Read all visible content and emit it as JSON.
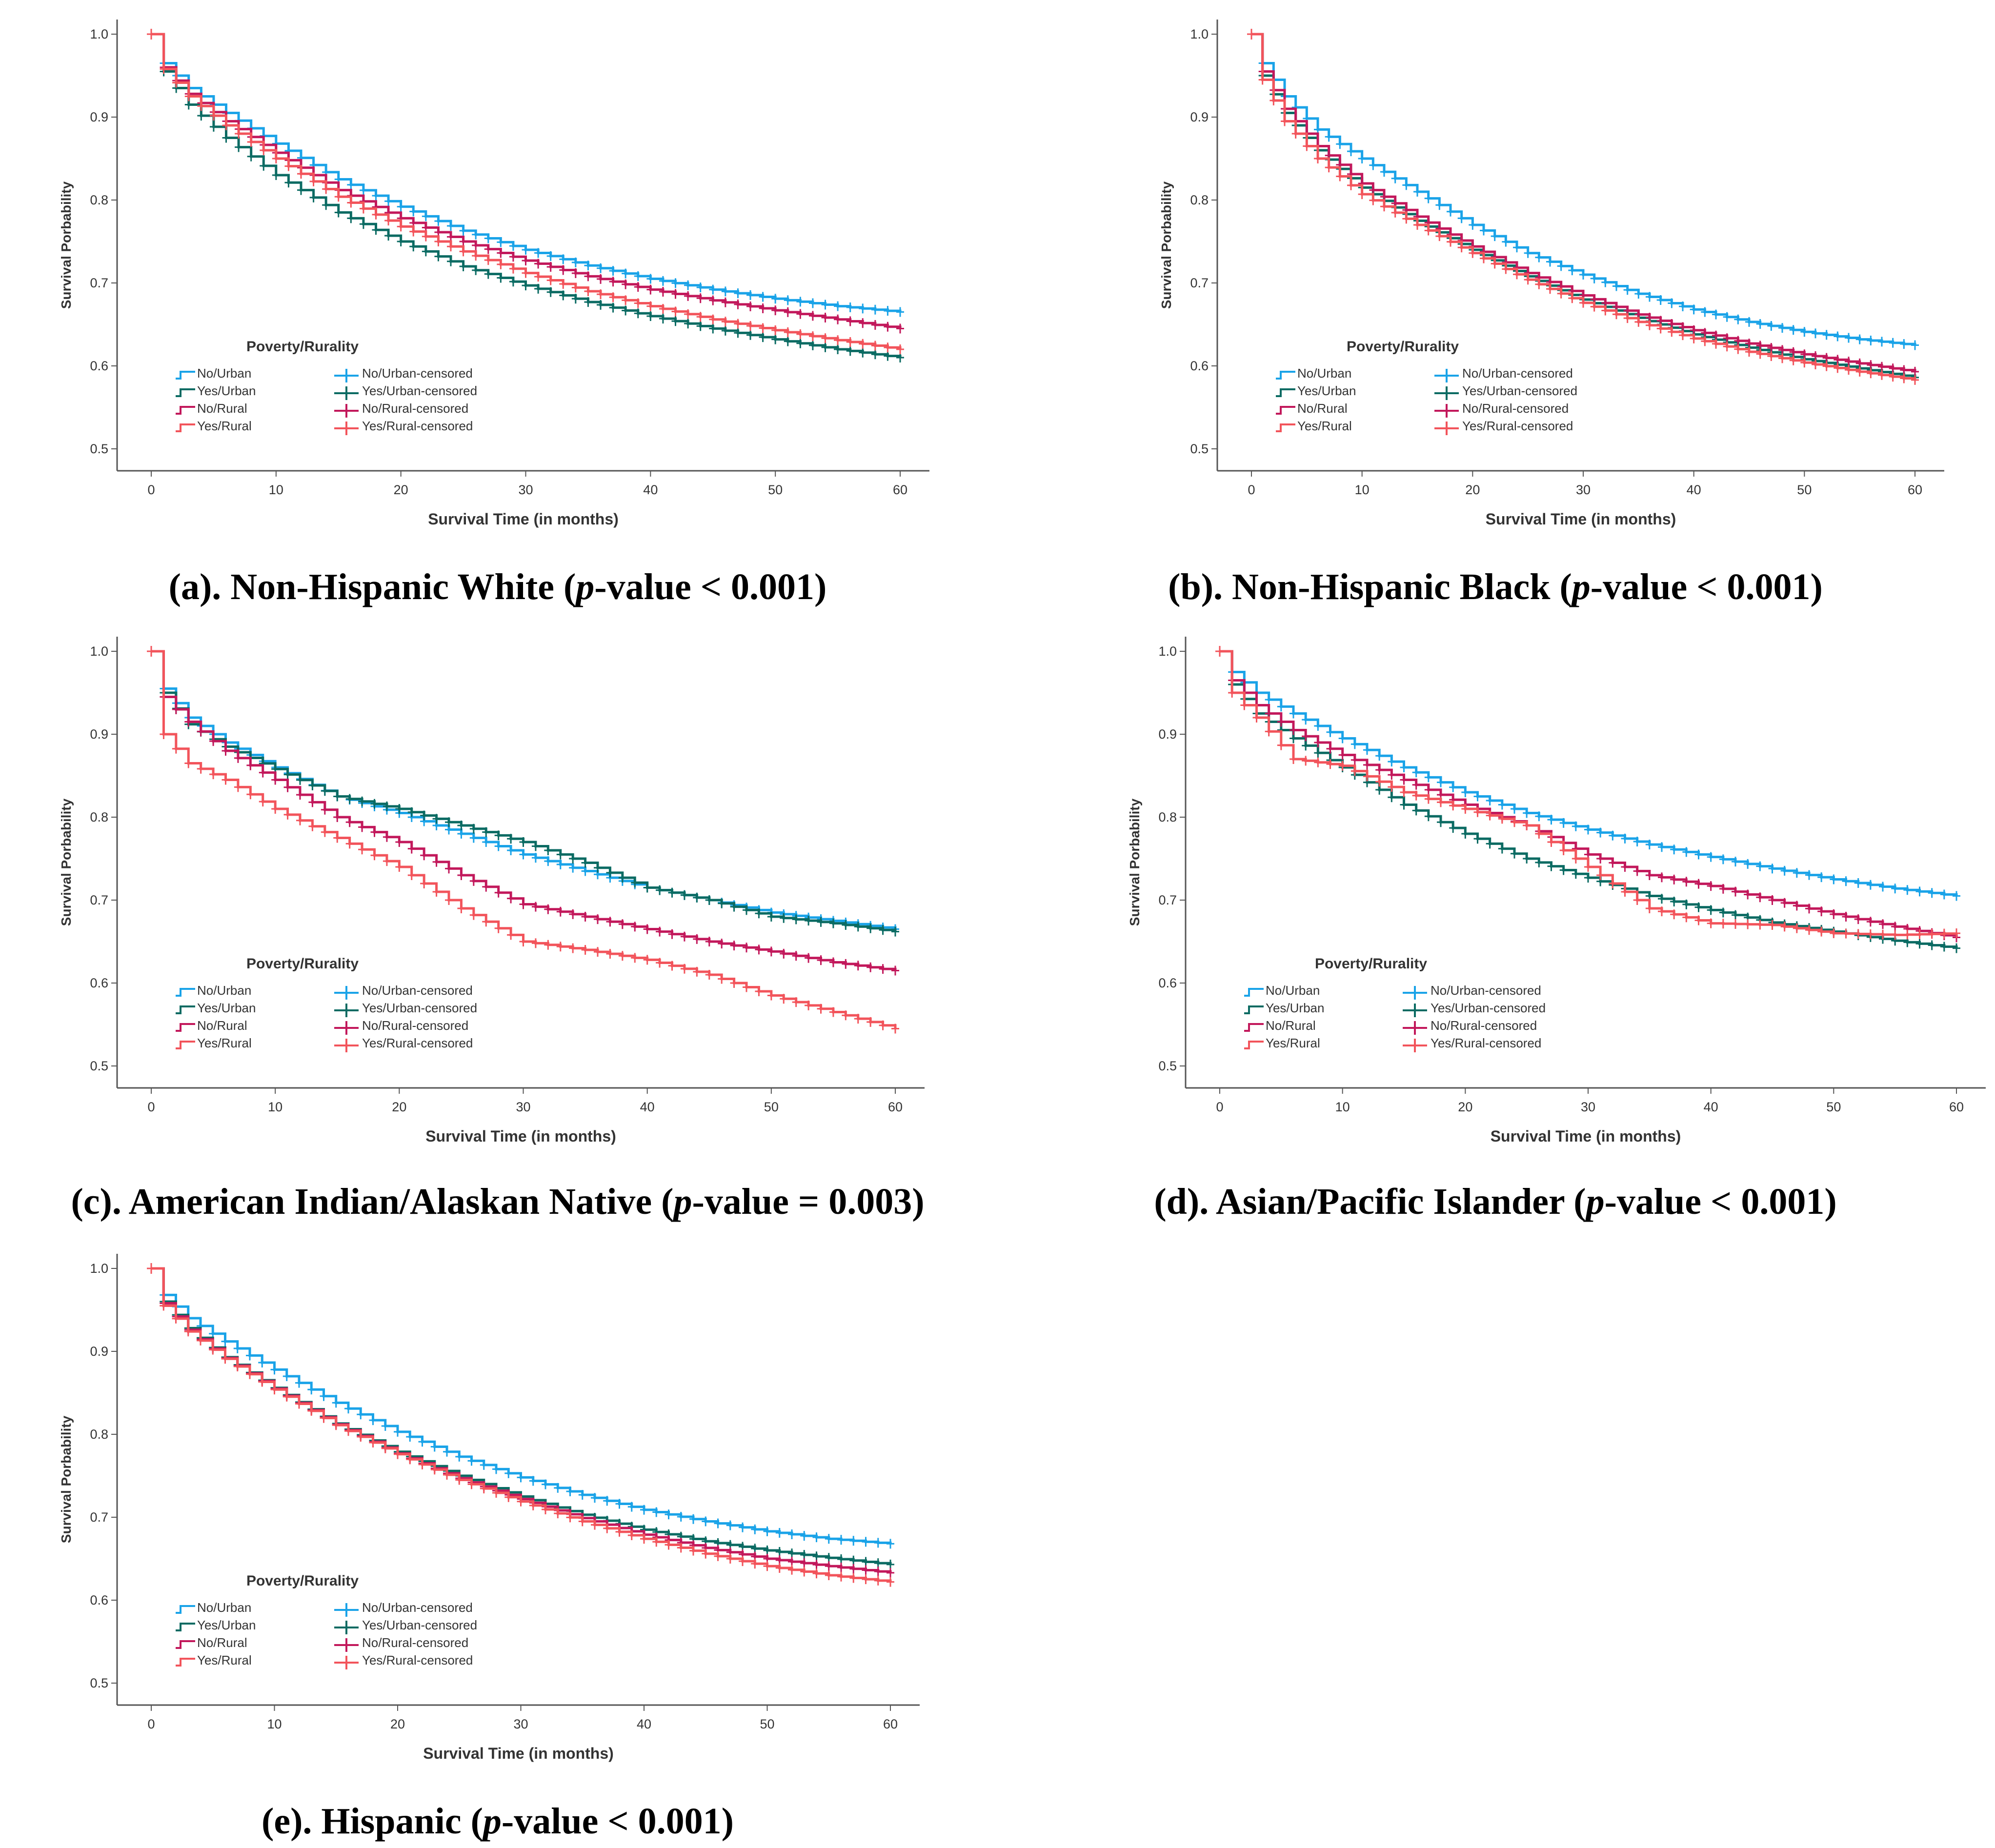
{
  "figure": {
    "legend_title": "Poverty/Rurality",
    "colors": {
      "No/Urban": "#1aa3e8",
      "Yes/Urban": "#0b6b63",
      "No/Rural": "#c2185b",
      "Yes/Rural": "#f2545b"
    },
    "legend_items": [
      {
        "label": "No/Urban",
        "censored_label": "No/Urban-censored",
        "color": "#1aa3e8"
      },
      {
        "label": "Yes/Urban",
        "censored_label": "Yes/Urban-censored",
        "color": "#0b6b63"
      },
      {
        "label": "No/Rural",
        "censored_label": "No/Rural-censored",
        "color": "#c2185b"
      },
      {
        "label": "Yes/Rural",
        "censored_label": "Yes/Rural-censored",
        "color": "#f2545b"
      }
    ]
  },
  "captions": {
    "a": {
      "pre": "(a). Non-Hispanic White (",
      "italic": "p",
      "post": "-value < 0.001)"
    },
    "b": {
      "pre": "(b). Non-Hispanic Black (",
      "italic": "p",
      "post": "-value < 0.001)"
    },
    "c": {
      "pre": "(c). American Indian/Alaskan Native (",
      "italic": "p",
      "post": "-value = 0.003)"
    },
    "d": {
      "pre": "(d). Asian/Pacific Islander (",
      "italic": "p",
      "post": "-value < 0.001)"
    },
    "e": {
      "pre": "(e). Hispanic (",
      "italic": "p",
      "post": "-value < 0.001)"
    }
  },
  "chart_data": [
    {
      "id": "a",
      "type": "line",
      "title": "(a). Non-Hispanic White (p-value < 0.001)",
      "xlabel": "Survival Time (in months)",
      "ylabel": "Survival Porbability",
      "xlim": [
        0,
        60
      ],
      "ylim": [
        0.5,
        1.0
      ],
      "xticks": [
        "0",
        "10",
        "20",
        "30",
        "40",
        "50",
        "60"
      ],
      "yticks": [
        "0.5",
        "0.6",
        "0.7",
        "0.8",
        "0.9",
        "1.0"
      ],
      "x": [
        0,
        1,
        3,
        6,
        10,
        15,
        20,
        25,
        30,
        35,
        40,
        45,
        50,
        55,
        60
      ],
      "series": [
        {
          "name": "No/Urban",
          "values": [
            1.0,
            0.965,
            0.935,
            0.905,
            0.868,
            0.825,
            0.792,
            0.763,
            0.74,
            0.721,
            0.705,
            0.692,
            0.681,
            0.672,
            0.665
          ]
        },
        {
          "name": "Yes/Urban",
          "values": [
            1.0,
            0.955,
            0.915,
            0.875,
            0.83,
            0.785,
            0.75,
            0.72,
            0.697,
            0.677,
            0.66,
            0.645,
            0.632,
            0.62,
            0.61
          ]
        },
        {
          "name": "No/Rural",
          "values": [
            1.0,
            0.96,
            0.928,
            0.895,
            0.857,
            0.812,
            0.778,
            0.75,
            0.727,
            0.708,
            0.692,
            0.679,
            0.667,
            0.656,
            0.645
          ]
        },
        {
          "name": "Yes/Rural",
          "values": [
            1.0,
            0.958,
            0.925,
            0.89,
            0.85,
            0.804,
            0.768,
            0.738,
            0.712,
            0.69,
            0.672,
            0.656,
            0.643,
            0.631,
            0.62
          ]
        }
      ]
    },
    {
      "id": "b",
      "type": "line",
      "title": "(b). Non-Hispanic Black (p-value < 0.001)",
      "xlabel": "Survival Time (in months)",
      "ylabel": "Survival Porbability",
      "xlim": [
        0,
        60
      ],
      "ylim": [
        0.5,
        1.0
      ],
      "xticks": [
        "0",
        "10",
        "20",
        "30",
        "40",
        "50",
        "60"
      ],
      "yticks": [
        "0.5",
        "0.6",
        "0.7",
        "0.8",
        "0.9",
        "1.0"
      ],
      "x": [
        0,
        1,
        3,
        6,
        10,
        15,
        20,
        25,
        30,
        35,
        40,
        45,
        50,
        55,
        60
      ],
      "series": [
        {
          "name": "No/Urban",
          "values": [
            1.0,
            0.965,
            0.925,
            0.885,
            0.85,
            0.81,
            0.77,
            0.736,
            0.71,
            0.687,
            0.668,
            0.653,
            0.641,
            0.632,
            0.625
          ]
        },
        {
          "name": "Yes/Urban",
          "values": [
            1.0,
            0.95,
            0.905,
            0.86,
            0.815,
            0.775,
            0.74,
            0.708,
            0.68,
            0.658,
            0.638,
            0.622,
            0.608,
            0.597,
            0.586
          ]
        },
        {
          "name": "No/Rural",
          "values": [
            1.0,
            0.955,
            0.91,
            0.865,
            0.82,
            0.78,
            0.744,
            0.712,
            0.685,
            0.662,
            0.643,
            0.627,
            0.614,
            0.603,
            0.593
          ]
        },
        {
          "name": "Yes/Rural",
          "values": [
            1.0,
            0.945,
            0.895,
            0.85,
            0.807,
            0.77,
            0.736,
            0.704,
            0.676,
            0.653,
            0.633,
            0.617,
            0.604,
            0.593,
            0.583
          ]
        }
      ]
    },
    {
      "id": "c",
      "type": "line",
      "title": "(c). American Indian/Alaskan Native (p-value = 0.003)",
      "xlabel": "Survival Time (in months)",
      "ylabel": "Survival Porbability",
      "xlim": [
        0,
        60
      ],
      "ylim": [
        0.5,
        1.0
      ],
      "xticks": [
        "0",
        "10",
        "20",
        "30",
        "40",
        "50",
        "60"
      ],
      "yticks": [
        "0.5",
        "0.6",
        "0.7",
        "0.8",
        "0.9",
        "1.0"
      ],
      "x": [
        0,
        1,
        3,
        6,
        10,
        15,
        20,
        25,
        30,
        35,
        40,
        45,
        50,
        55,
        60
      ],
      "series": [
        {
          "name": "No/Urban",
          "values": [
            1.0,
            0.955,
            0.92,
            0.89,
            0.86,
            0.825,
            0.805,
            0.78,
            0.755,
            0.735,
            0.715,
            0.7,
            0.685,
            0.675,
            0.665
          ]
        },
        {
          "name": "Yes/Urban",
          "values": [
            1.0,
            0.95,
            0.912,
            0.885,
            0.858,
            0.825,
            0.81,
            0.79,
            0.77,
            0.745,
            0.715,
            0.7,
            0.68,
            0.672,
            0.662
          ]
        },
        {
          "name": "No/Rural",
          "values": [
            1.0,
            0.945,
            0.915,
            0.88,
            0.845,
            0.8,
            0.77,
            0.73,
            0.695,
            0.68,
            0.665,
            0.65,
            0.638,
            0.625,
            0.615
          ]
        },
        {
          "name": "Yes/Rural",
          "values": [
            1.0,
            0.9,
            0.865,
            0.845,
            0.81,
            0.775,
            0.74,
            0.69,
            0.65,
            0.64,
            0.628,
            0.61,
            0.585,
            0.565,
            0.545
          ]
        }
      ]
    },
    {
      "id": "d",
      "type": "line",
      "title": "(d). Asian/Pacific Islander (p-value < 0.001)",
      "xlabel": "Survival Time (in months)",
      "ylabel": "Survival Porbability",
      "xlim": [
        0,
        60
      ],
      "ylim": [
        0.5,
        1.0
      ],
      "xticks": [
        "0",
        "10",
        "20",
        "30",
        "40",
        "50",
        "60"
      ],
      "yticks": [
        "0.5",
        "0.6",
        "0.7",
        "0.8",
        "0.9",
        "1.0"
      ],
      "x": [
        0,
        1,
        3,
        6,
        10,
        15,
        20,
        25,
        30,
        35,
        40,
        45,
        50,
        55,
        60
      ],
      "series": [
        {
          "name": "No/Urban",
          "values": [
            1.0,
            0.975,
            0.95,
            0.925,
            0.895,
            0.86,
            0.83,
            0.805,
            0.785,
            0.767,
            0.752,
            0.738,
            0.725,
            0.714,
            0.705
          ]
        },
        {
          "name": "Yes/Urban",
          "values": [
            1.0,
            0.96,
            0.925,
            0.895,
            0.86,
            0.815,
            0.78,
            0.75,
            0.727,
            0.705,
            0.688,
            0.673,
            0.662,
            0.651,
            0.642
          ]
        },
        {
          "name": "No/Rural",
          "values": [
            1.0,
            0.965,
            0.935,
            0.905,
            0.875,
            0.845,
            0.815,
            0.79,
            0.755,
            0.73,
            0.717,
            0.7,
            0.683,
            0.668,
            0.655
          ]
        },
        {
          "name": "Yes/Rural",
          "values": [
            1.0,
            0.95,
            0.92,
            0.87,
            0.862,
            0.83,
            0.81,
            0.79,
            0.74,
            0.69,
            0.672,
            0.67,
            0.66,
            0.658,
            0.66
          ]
        }
      ]
    },
    {
      "id": "e",
      "type": "line",
      "title": "(e). Hispanic (p-value < 0.001)",
      "xlabel": "Survival Time (in months)",
      "ylabel": "Survival Porbability",
      "xlim": [
        0,
        60
      ],
      "ylim": [
        0.5,
        1.0
      ],
      "xticks": [
        "0",
        "10",
        "20",
        "30",
        "40",
        "50",
        "60"
      ],
      "yticks": [
        "0.5",
        "0.6",
        "0.7",
        "0.8",
        "0.9",
        "1.0"
      ],
      "x": [
        0,
        1,
        3,
        6,
        10,
        15,
        20,
        25,
        30,
        35,
        40,
        45,
        50,
        55,
        60
      ],
      "series": [
        {
          "name": "No/Urban",
          "values": [
            1.0,
            0.968,
            0.94,
            0.912,
            0.878,
            0.838,
            0.803,
            0.773,
            0.748,
            0.727,
            0.709,
            0.695,
            0.683,
            0.674,
            0.668
          ]
        },
        {
          "name": "Yes/Urban",
          "values": [
            1.0,
            0.96,
            0.928,
            0.893,
            0.856,
            0.813,
            0.779,
            0.75,
            0.725,
            0.703,
            0.685,
            0.671,
            0.66,
            0.651,
            0.643
          ]
        },
        {
          "name": "No/Rural",
          "values": [
            1.0,
            0.958,
            0.926,
            0.892,
            0.855,
            0.812,
            0.777,
            0.747,
            0.722,
            0.699,
            0.679,
            0.663,
            0.65,
            0.641,
            0.633
          ]
        },
        {
          "name": "Yes/Rural",
          "values": [
            1.0,
            0.955,
            0.924,
            0.891,
            0.854,
            0.811,
            0.776,
            0.745,
            0.719,
            0.695,
            0.674,
            0.656,
            0.641,
            0.63,
            0.622
          ]
        }
      ]
    }
  ]
}
